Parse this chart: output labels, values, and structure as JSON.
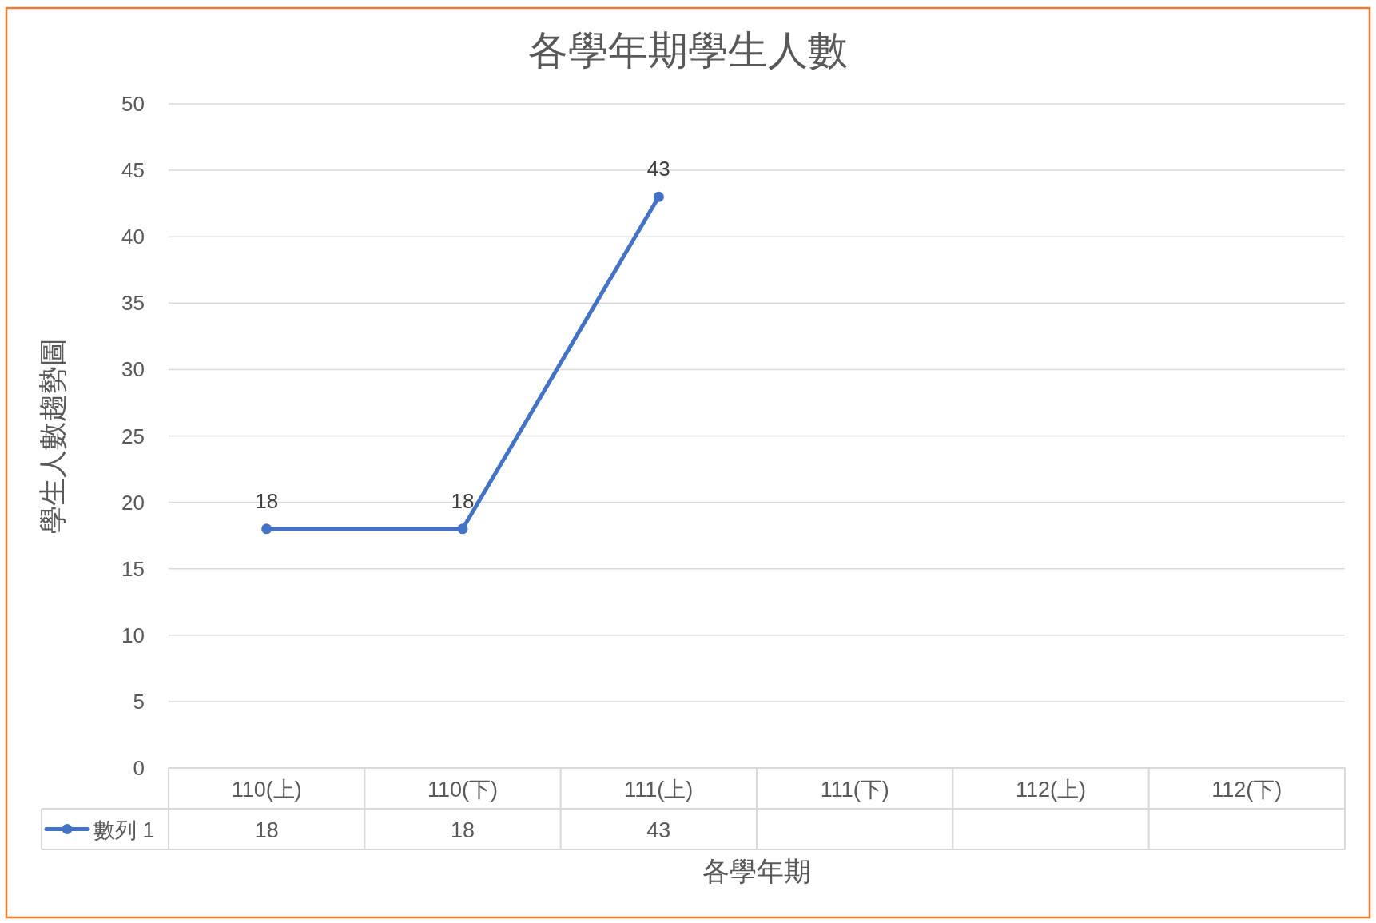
{
  "chart_data": {
    "type": "line",
    "title": "各學年期學生人數",
    "xlabel": "各學年期",
    "ylabel": "學生人數趨勢圖",
    "categories": [
      "110(上)",
      "110(下)",
      "111(上)",
      "111(下)",
      "112(上)",
      "112(下)"
    ],
    "series": [
      {
        "name": "數列 1",
        "color": "#4472c4",
        "values": [
          18,
          18,
          43,
          null,
          null,
          null
        ]
      }
    ],
    "ylim": [
      0,
      50
    ],
    "yticks": [
      0,
      5,
      10,
      15,
      20,
      25,
      30,
      35,
      40,
      45,
      50
    ],
    "annotations": [
      {
        "text": "18",
        "x": "110(上)",
        "y": 18
      },
      {
        "text": "18",
        "x": "110(下)",
        "y": 18
      },
      {
        "text": "43",
        "x": "111(上)",
        "y": 43
      }
    ],
    "grid": "y",
    "data_labels": true,
    "legend": "bottom",
    "marker": "circle",
    "line_style": "solid"
  }
}
